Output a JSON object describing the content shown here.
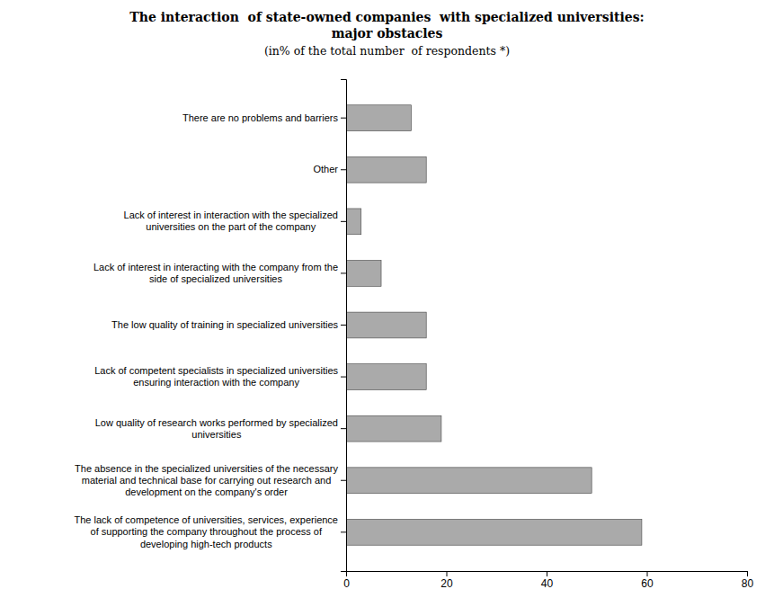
{
  "chart_data": {
    "type": "bar",
    "orientation": "horizontal",
    "title": "The interaction  of state-owned companies  with specialized universities:\nmajor obstacles",
    "subtitle": "(in% of the total number  of respondents *)",
    "categories": [
      "There are no problems and barriers",
      "Other",
      "Lack of interest in interaction with the specialized\nuniversities on the part of the company",
      "Lack of interest in interacting with the company from the\nside of specialized universities",
      "The low quality of training in specialized universities",
      "Lack of competent specialists in specialized universities\nensuring interaction with the company",
      "Low quality of research works performed by specialized\nuniversities",
      "The absence in the specialized universities of the necessary\nmaterial and technical base for carrying out research and\ndevelopment on the company's order",
      "The lack of competence of universities, services, experience\nof supporting the company throughout the process of\ndeveloping high-tech products"
    ],
    "values": [
      13,
      16,
      3,
      7,
      16,
      16,
      19,
      49,
      59
    ],
    "color": "#aaaaaa",
    "xlim": [
      0,
      80
    ],
    "xticks": [
      0,
      20,
      40,
      60,
      80
    ],
    "grid": false
  }
}
